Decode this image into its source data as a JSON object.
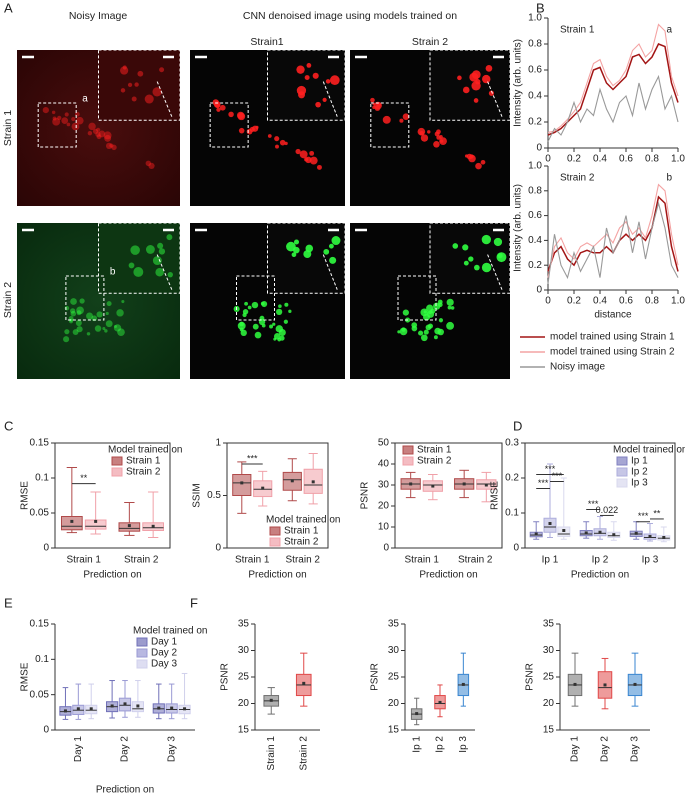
{
  "panel_labels": [
    "A",
    "B",
    "C",
    "D",
    "E",
    "F"
  ],
  "panel_a": {
    "columns": [
      "Noisy Image",
      "Strain1",
      "Strain 2"
    ],
    "header": "CNN denoised image using models trained on",
    "rows": [
      "Strain 1",
      "Strain 2"
    ],
    "roi_labels": [
      "a",
      "b"
    ]
  },
  "chart_data": [
    {
      "type": "line",
      "title": "Strain 1",
      "annotation": "a",
      "ylabel": "Intensity (arb. units)",
      "x": [
        0,
        0.05,
        0.1,
        0.15,
        0.2,
        0.25,
        0.3,
        0.35,
        0.4,
        0.45,
        0.5,
        0.55,
        0.6,
        0.65,
        0.7,
        0.75,
        0.8,
        0.85,
        0.9,
        0.95,
        1
      ],
      "xlim": [
        0,
        1
      ],
      "xticks": [
        0,
        0.2,
        0.4,
        0.6,
        0.8,
        {
          "value": 1,
          "label": "1.0"
        }
      ],
      "ylim": [
        0,
        1
      ],
      "yticks": [
        0,
        0.2,
        0.4,
        0.6,
        0.8,
        {
          "value": 1,
          "label": "1.0"
        }
      ],
      "series": [
        {
          "color": "#a31515",
          "values": [
            0.1,
            0.12,
            0.15,
            0.2,
            0.25,
            0.3,
            0.45,
            0.6,
            0.62,
            0.5,
            0.45,
            0.5,
            0.55,
            0.7,
            0.72,
            0.65,
            0.7,
            0.8,
            0.78,
            0.5,
            0.35
          ]
        },
        {
          "color": "#f4a3a3",
          "values": [
            0.12,
            0.13,
            0.17,
            0.22,
            0.28,
            0.35,
            0.5,
            0.65,
            0.68,
            0.55,
            0.48,
            0.52,
            0.6,
            0.75,
            0.8,
            0.7,
            0.75,
            0.95,
            0.9,
            0.55,
            0.4
          ]
        },
        {
          "color": "#999999",
          "values": [
            0.05,
            0.15,
            0.1,
            0.2,
            0.35,
            0.2,
            0.3,
            0.25,
            0.45,
            0.3,
            0.2,
            0.35,
            0.4,
            0.25,
            0.5,
            0.3,
            0.45,
            0.55,
            0.3,
            0.4,
            0.2
          ]
        }
      ]
    },
    {
      "type": "line",
      "title": "Strain 2",
      "annotation": "b",
      "ylabel": "Intensity (arb. units)",
      "xlabel": "distance",
      "x": [
        0,
        0.05,
        0.1,
        0.15,
        0.2,
        0.25,
        0.3,
        0.35,
        0.4,
        0.45,
        0.5,
        0.55,
        0.6,
        0.65,
        0.7,
        0.75,
        0.8,
        0.85,
        0.9,
        0.95,
        1
      ],
      "xlim": [
        0,
        1
      ],
      "xticks": [
        0,
        0.2,
        0.4,
        0.6,
        0.8,
        {
          "value": 1,
          "label": "1.0"
        }
      ],
      "ylim": [
        0,
        1
      ],
      "yticks": [
        0,
        0.2,
        0.4,
        0.6,
        0.8,
        {
          "value": 1,
          "label": "1.0"
        }
      ],
      "series": [
        {
          "name": "model trained using Strain 1",
          "color": "#a31515",
          "values": [
            0.15,
            0.3,
            0.35,
            0.25,
            0.2,
            0.3,
            0.32,
            0.3,
            0.3,
            0.35,
            0.3,
            0.4,
            0.45,
            0.4,
            0.45,
            0.4,
            0.5,
            0.75,
            0.7,
            0.35,
            0.15
          ]
        },
        {
          "name": "model trained using Strain 2",
          "color": "#f4a3a3",
          "values": [
            0.1,
            0.35,
            0.42,
            0.3,
            0.25,
            0.35,
            0.38,
            0.35,
            0.4,
            0.45,
            0.38,
            0.5,
            0.55,
            0.45,
            0.5,
            0.42,
            0.6,
            0.85,
            0.8,
            0.45,
            0.2
          ]
        },
        {
          "name": "Noisy image",
          "color": "#999999",
          "values": [
            0.05,
            0.45,
            0.2,
            0.1,
            0.3,
            0.15,
            0.25,
            0.35,
            0.1,
            0.5,
            0.3,
            0.4,
            0.6,
            0.3,
            0.55,
            0.25,
            0.5,
            0.7,
            0.5,
            0.2,
            0.1
          ]
        }
      ]
    },
    {
      "type": "box",
      "ylabel": "RMSE",
      "xlabel": "Prediction on",
      "categories": [
        "Strain 1",
        "Strain 2"
      ],
      "ylim": [
        0,
        0.15
      ],
      "yticks": [
        0,
        0.05,
        0.1,
        0.15
      ],
      "legend": "upper right",
      "legend_title": "Model trained on",
      "series": [
        {
          "name": "Strain 1",
          "color": "#b04a4a",
          "values": [
            {
              "min": 0.022,
              "q1": 0.026,
              "median": 0.031,
              "q3": 0.045,
              "max": 0.115,
              "mean": 0.038
            },
            {
              "min": 0.018,
              "q1": 0.024,
              "median": 0.028,
              "q3": 0.036,
              "max": 0.065,
              "mean": 0.032
            }
          ]
        },
        {
          "name": "Strain 2",
          "color": "#f0a0a8",
          "values": [
            {
              "min": 0.02,
              "q1": 0.027,
              "median": 0.031,
              "q3": 0.04,
              "max": 0.08,
              "mean": 0.038
            },
            {
              "min": 0.015,
              "q1": 0.025,
              "median": 0.029,
              "q3": 0.036,
              "max": 0.08,
              "mean": 0.031
            }
          ]
        }
      ],
      "annotations": [
        {
          "text": "**",
          "y": 0.092
        }
      ]
    },
    {
      "type": "box",
      "ylabel": "SSIM",
      "xlabel": "Prediction on",
      "categories": [
        "Strain 1",
        "Strain 2"
      ],
      "ylim": [
        0,
        1
      ],
      "yticks": [
        0,
        0.5,
        1
      ],
      "legend": "lower right",
      "legend_title": "Model trained on",
      "series": [
        {
          "name": "Strain 1",
          "color": "#b04a4a",
          "values": [
            {
              "min": 0.33,
              "q1": 0.5,
              "median": 0.62,
              "q3": 0.7,
              "max": 0.82,
              "mean": 0.62
            },
            {
              "min": 0.45,
              "q1": 0.55,
              "median": 0.65,
              "q3": 0.72,
              "max": 0.85,
              "mean": 0.64
            }
          ]
        },
        {
          "name": "Strain 2",
          "color": "#f0a0a8",
          "values": [
            {
              "min": 0.4,
              "q1": 0.49,
              "median": 0.56,
              "q3": 0.64,
              "max": 0.73,
              "mean": 0.57
            },
            {
              "min": 0.42,
              "q1": 0.52,
              "median": 0.6,
              "q3": 0.75,
              "max": 0.9,
              "mean": 0.63
            }
          ]
        }
      ],
      "annotations": [
        {
          "text": "***",
          "y": 0.8
        }
      ]
    },
    {
      "type": "box",
      "ylabel": "PSNR",
      "xlabel": "Prediction on",
      "categories": [
        "Strain 1",
        "Strain 2"
      ],
      "ylim": [
        0,
        50
      ],
      "yticks": [
        0,
        10,
        20,
        30,
        40,
        50
      ],
      "legend": "upper left",
      "series": [
        {
          "name": "Strain 1",
          "color": "#b04a4a",
          "values": [
            {
              "min": 24,
              "q1": 28,
              "median": 30.5,
              "q3": 33,
              "max": 36,
              "mean": 30.5
            },
            {
              "min": 24,
              "q1": 28,
              "median": 30.5,
              "q3": 33,
              "max": 37,
              "mean": 30.5
            }
          ]
        },
        {
          "name": "Strain 2",
          "color": "#f0a0a8",
          "values": [
            {
              "min": 23,
              "q1": 27,
              "median": 30,
              "q3": 32,
              "max": 35,
              "mean": 29.5
            },
            {
              "min": 22,
              "q1": 28,
              "median": 30.5,
              "q3": 32.5,
              "max": 36,
              "mean": 30
            }
          ]
        }
      ]
    },
    {
      "type": "box",
      "ylabel": "RMSE",
      "xlabel": "Prediction on",
      "categories": [
        "Ip 1",
        "Ip 2",
        "Ip 3"
      ],
      "ylim": [
        0,
        0.3
      ],
      "yticks": [
        0,
        0.1,
        0.2,
        0.3
      ],
      "legend": "upper right",
      "legend_title": "Model trained on",
      "series": [
        {
          "name": "Ip 1",
          "color": "#8080c0",
          "values": [
            {
              "min": 0.025,
              "q1": 0.032,
              "median": 0.037,
              "q3": 0.045,
              "max": 0.075,
              "mean": 0.04
            },
            {
              "min": 0.028,
              "q1": 0.035,
              "median": 0.04,
              "q3": 0.05,
              "max": 0.075,
              "mean": 0.043
            },
            {
              "min": 0.025,
              "q1": 0.033,
              "median": 0.04,
              "q3": 0.048,
              "max": 0.075,
              "mean": 0.042
            }
          ]
        },
        {
          "name": "Ip 2",
          "color": "#aeaedc",
          "values": [
            {
              "min": 0.03,
              "q1": 0.045,
              "median": 0.06,
              "q3": 0.085,
              "max": 0.24,
              "mean": 0.07
            },
            {
              "min": 0.025,
              "q1": 0.035,
              "median": 0.042,
              "q3": 0.055,
              "max": 0.09,
              "mean": 0.045
            },
            {
              "min": 0.02,
              "q1": 0.025,
              "median": 0.03,
              "q3": 0.04,
              "max": 0.07,
              "mean": 0.033
            }
          ]
        },
        {
          "name": "Ip 3",
          "color": "#d8d8ee",
          "values": [
            {
              "min": 0.025,
              "q1": 0.033,
              "median": 0.04,
              "q3": 0.06,
              "max": 0.2,
              "mean": 0.05
            },
            {
              "min": 0.022,
              "q1": 0.03,
              "median": 0.035,
              "q3": 0.045,
              "max": 0.075,
              "mean": 0.038
            },
            {
              "min": 0.018,
              "q1": 0.023,
              "median": 0.028,
              "q3": 0.035,
              "max": 0.06,
              "mean": 0.03
            }
          ]
        }
      ],
      "annotations": [
        {
          "text": "***",
          "y": 0.21
        },
        {
          "text": "***",
          "y": 0.19
        },
        {
          "text": "***",
          "y": 0.17
        },
        {
          "text": "***",
          "y": 0.11
        },
        {
          "text": "0.022",
          "y": 0.093
        },
        {
          "text": "***",
          "y": 0.075
        },
        {
          "text": "**",
          "y": 0.083
        }
      ]
    },
    {
      "type": "box",
      "ylabel": "RMSE",
      "xlabel": "Prediction on",
      "categories": [
        "Day 1",
        "Day 2",
        "Day 3"
      ],
      "rotate_labels": true,
      "ylim": [
        0,
        0.15
      ],
      "yticks": [
        0,
        0.05,
        0.1,
        0.15
      ],
      "legend": "upper right",
      "legend_title": "Model trained on",
      "series": [
        {
          "name": "Day 1",
          "color": "#7070b8",
          "values": [
            {
              "min": 0.015,
              "q1": 0.021,
              "median": 0.026,
              "q3": 0.033,
              "max": 0.06,
              "mean": 0.027
            },
            {
              "min": 0.017,
              "q1": 0.026,
              "median": 0.033,
              "q3": 0.04,
              "max": 0.07,
              "mean": 0.034
            },
            {
              "min": 0.016,
              "q1": 0.024,
              "median": 0.03,
              "q3": 0.037,
              "max": 0.065,
              "mean": 0.031
            }
          ]
        },
        {
          "name": "Day 2",
          "color": "#9a9ad4",
          "values": [
            {
              "min": 0.015,
              "q1": 0.022,
              "median": 0.028,
              "q3": 0.035,
              "max": 0.065,
              "mean": 0.03
            },
            {
              "min": 0.018,
              "q1": 0.027,
              "median": 0.035,
              "q3": 0.045,
              "max": 0.07,
              "mean": 0.037
            },
            {
              "min": 0.016,
              "q1": 0.024,
              "median": 0.029,
              "q3": 0.037,
              "max": 0.065,
              "mean": 0.031
            }
          ]
        },
        {
          "name": "Day 3",
          "color": "#d0d0ec",
          "values": [
            {
              "min": 0.016,
              "q1": 0.023,
              "median": 0.028,
              "q3": 0.035,
              "max": 0.065,
              "mean": 0.03
            },
            {
              "min": 0.018,
              "q1": 0.026,
              "median": 0.03,
              "q3": 0.04,
              "max": 0.07,
              "mean": 0.034
            },
            {
              "min": 0.016,
              "q1": 0.023,
              "median": 0.029,
              "q3": 0.035,
              "max": 0.08,
              "mean": 0.03
            }
          ]
        }
      ]
    },
    {
      "type": "box",
      "ylabel": "PSNR",
      "categories": [
        "Strain 1",
        "Strain 2"
      ],
      "rotate_labels": true,
      "ylim": [
        15,
        35
      ],
      "yticks": [
        15,
        20,
        25,
        30,
        35
      ],
      "colors": [
        "#707070",
        "#e04848"
      ],
      "values": [
        {
          "min": 18,
          "q1": 19.5,
          "median": 20.5,
          "q3": 21.5,
          "max": 23,
          "mean": 20.6
        },
        {
          "min": 19.5,
          "q1": 21.5,
          "median": 23.5,
          "q3": 25.5,
          "max": 29.5,
          "mean": 23.8
        }
      ]
    },
    {
      "type": "box",
      "ylabel": "PSNR",
      "categories": [
        "Ip 1",
        "Ip 2",
        "Ip 3"
      ],
      "rotate_labels": true,
      "ylim": [
        15,
        35
      ],
      "yticks": [
        15,
        20,
        25,
        30,
        35
      ],
      "colors": [
        "#707070",
        "#e04848",
        "#3a86d0"
      ],
      "values": [
        {
          "min": 16,
          "q1": 17,
          "median": 18,
          "q3": 19,
          "max": 21,
          "mean": 18.1
        },
        {
          "min": 17.5,
          "q1": 19,
          "median": 20,
          "q3": 21.5,
          "max": 23.5,
          "mean": 20.2
        },
        {
          "min": 19.5,
          "q1": 21.5,
          "median": 23.5,
          "q3": 25.5,
          "max": 29.5,
          "mean": 23.6
        }
      ]
    },
    {
      "type": "box",
      "ylabel": "PSNR",
      "categories": [
        "Day 1",
        "Day 2",
        "Day 3"
      ],
      "rotate_labels": true,
      "ylim": [
        15,
        35
      ],
      "yticks": [
        15,
        20,
        25,
        30,
        35
      ],
      "colors": [
        "#707070",
        "#e04848",
        "#3a86d0"
      ],
      "values": [
        {
          "min": 19.5,
          "q1": 21.5,
          "median": 23.5,
          "q3": 25.5,
          "max": 29.5,
          "mean": 23.6
        },
        {
          "min": 19,
          "q1": 21,
          "median": 23,
          "q3": 26,
          "max": 28.5,
          "mean": 23.5
        },
        {
          "min": 19.5,
          "q1": 21.5,
          "median": 23.5,
          "q3": 25.5,
          "max": 29.5,
          "mean": 23.6
        }
      ]
    }
  ]
}
